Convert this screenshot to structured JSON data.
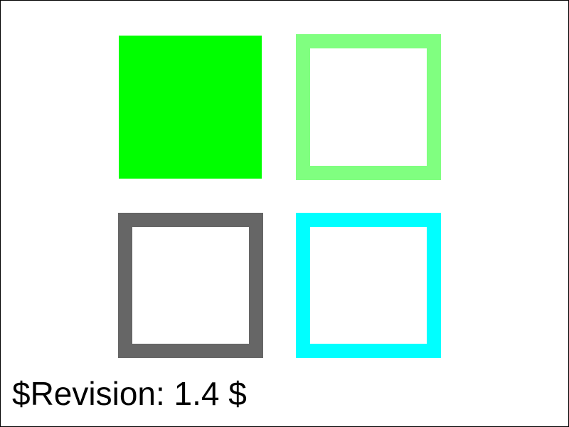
{
  "revision_text": "$Revision: 1.4 $",
  "colors": {
    "background": "#ffffff",
    "frame_border": "#000000",
    "text": "#000000",
    "solid_square_fill": "#00ff00",
    "light_green_outline": "#80ff80",
    "gray_outline": "#666666",
    "cyan_outline": "#00ffff"
  },
  "squares": [
    {
      "name": "solid-green-square",
      "style": "filled",
      "color": "#00ff00"
    },
    {
      "name": "light-green-outline-square",
      "style": "outline",
      "color": "#80ff80"
    },
    {
      "name": "gray-outline-square",
      "style": "outline",
      "color": "#666666"
    },
    {
      "name": "cyan-outline-square",
      "style": "outline",
      "color": "#00ffff"
    }
  ]
}
